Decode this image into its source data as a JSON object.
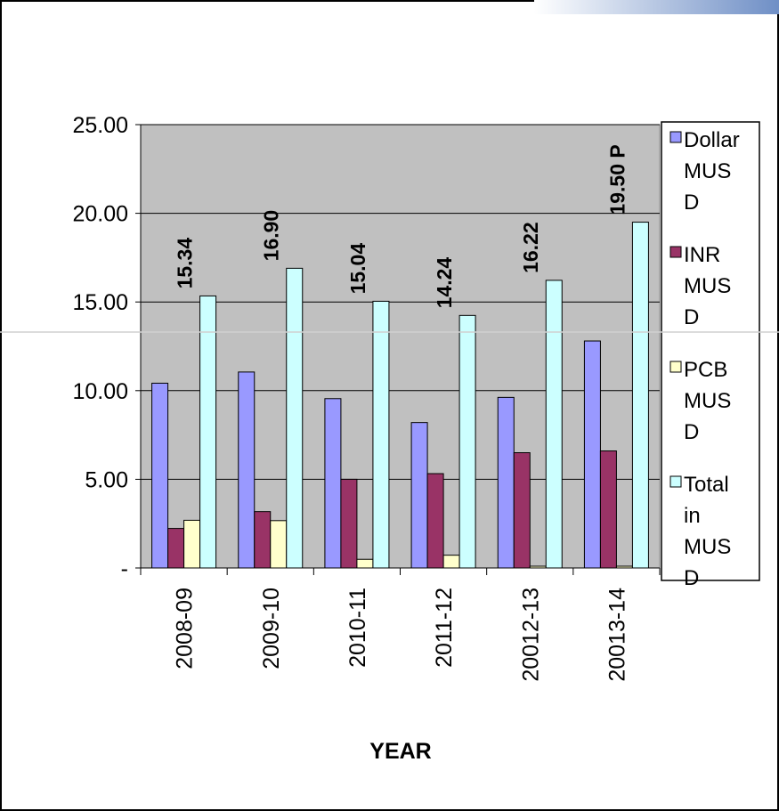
{
  "chart_data": {
    "type": "bar",
    "title": "",
    "xlabel": "YEAR",
    "ylabel": "",
    "ylim": [
      0,
      25
    ],
    "yticks": [
      0,
      5,
      10,
      15,
      20,
      25
    ],
    "ytick_labels": [
      "-",
      "5.00",
      "10.00",
      "15.00",
      "20.00",
      "25.00"
    ],
    "categories": [
      "2008-09",
      "2009-10",
      "2010-11",
      "2011-12",
      "20012-13",
      "20013-14"
    ],
    "series": [
      {
        "name": "Dollar MUSD",
        "legend_lines": [
          "Dollar",
          "MUS",
          "D"
        ],
        "color": "#9999ff",
        "values": [
          10.42,
          11.05,
          9.55,
          8.2,
          9.62,
          12.8
        ]
      },
      {
        "name": "INR MUSD",
        "legend_lines": [
          "INR",
          "MUS",
          "D"
        ],
        "color": "#993366",
        "values": [
          2.23,
          3.18,
          5.0,
          5.32,
          6.5,
          6.6
        ]
      },
      {
        "name": "PCB MUSD",
        "legend_lines": [
          "PCB",
          "MUS",
          "D"
        ],
        "color": "#ffffcc",
        "values": [
          2.69,
          2.67,
          0.49,
          0.72,
          0.1,
          0.1
        ]
      },
      {
        "name": "Total in MUSD",
        "legend_lines": [
          "Total",
          "in",
          "MUS",
          "D"
        ],
        "color": "#ccffff",
        "values": [
          15.34,
          16.9,
          15.04,
          14.24,
          16.22,
          19.5
        ]
      }
    ],
    "data_labels": [
      "15.34",
      "16.90",
      "15.04",
      "14.24",
      "16.22",
      "19.50 P"
    ],
    "plot_background": "#c0c0c0",
    "grid": "horizontal",
    "legend_position": "right"
  }
}
